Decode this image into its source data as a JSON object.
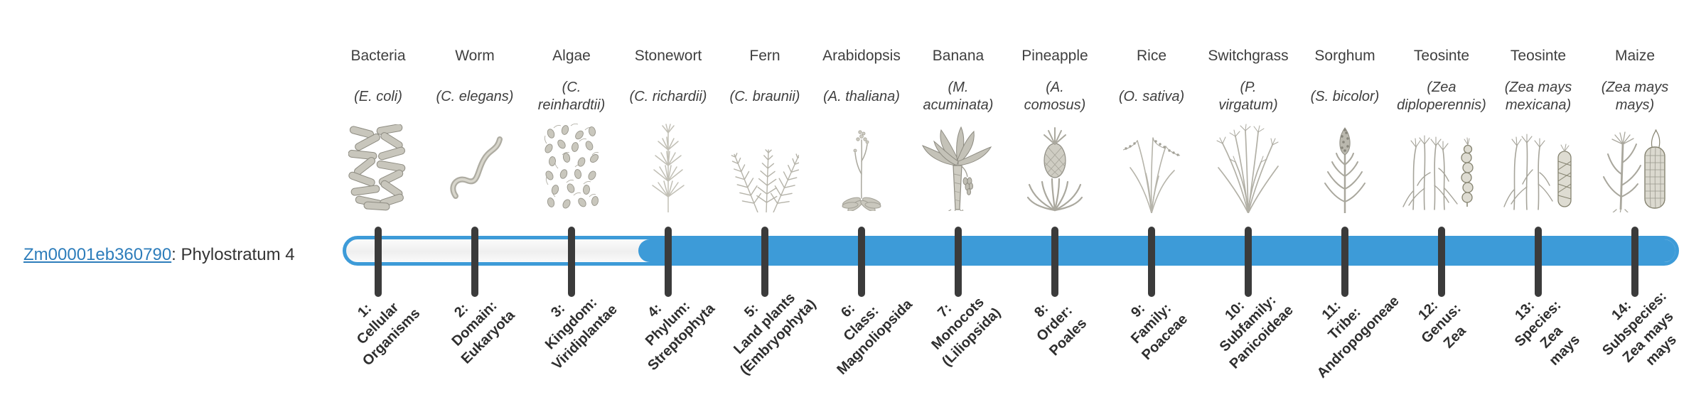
{
  "gene": {
    "id": "Zm00001eb360790",
    "suffix": ": Phylostratum 4"
  },
  "colors": {
    "bar_blue": "#3d9bd8",
    "link_blue": "#2d7dbb",
    "tick": "#3b3b3b",
    "text": "#3f3f3f",
    "label_dark": "#2e2e2e"
  },
  "columns": [
    {
      "organism": "Bacteria",
      "species": "(E. coli)",
      "icon": "bacteria",
      "stratum": "1:\nCellular\nOrganisms"
    },
    {
      "organism": "Worm",
      "species": "(C. elegans)",
      "icon": "worm",
      "stratum": "2:\nDomain:\nEukaryota"
    },
    {
      "organism": "Algae",
      "species": "(C.\nreinhardtii)",
      "icon": "algae",
      "stratum": "3:\nKingdom:\nViridiplantae"
    },
    {
      "organism": "Stonewort",
      "species": "(C. richardii)",
      "icon": "stonewort",
      "stratum": "4:\nPhylum:\nStreptophyta"
    },
    {
      "organism": "Fern",
      "species": "(C. braunii)",
      "icon": "fern",
      "stratum": "5:\nLand plants\n(Embryophyta)"
    },
    {
      "organism": "Arabidopsis",
      "species": "(A. thaliana)",
      "icon": "arabidopsis",
      "stratum": "6:\nClass:\nMagnoliopsida"
    },
    {
      "organism": "Banana",
      "species": "(M.\nacuminata)",
      "icon": "banana",
      "stratum": "7:\nMonocots\n(Liliopsida)"
    },
    {
      "organism": "Pineapple",
      "species": "(A.\ncomosus)",
      "icon": "pineapple",
      "stratum": "8:\nOrder:\nPoales"
    },
    {
      "organism": "Rice",
      "species": "(O. sativa)",
      "icon": "rice",
      "stratum": "9:\nFamily:\nPoaceae"
    },
    {
      "organism": "Switchgrass",
      "species": "(P.\nvirgatum)",
      "icon": "switchgrass",
      "stratum": "10:\nSubfamily:\nPanicoideae"
    },
    {
      "organism": "Sorghum",
      "species": "(S. bicolor)",
      "icon": "sorghum",
      "stratum": "11:\nTribe:\nAndropogoneae"
    },
    {
      "organism": "Teosinte",
      "species": "(Zea\ndiploperennis)",
      "icon": "teosinte-diploperennis",
      "stratum": "12:\nGenus:\nZea"
    },
    {
      "organism": "Teosinte",
      "species": "(Zea mays\nmexicana)",
      "icon": "teosinte-mexicana",
      "stratum": "13:\nSpecies:\nZea\nmays"
    },
    {
      "organism": "Maize",
      "species": "(Zea mays\nmays)",
      "icon": "maize",
      "stratum": "14:\nSubspecies:\nZea mays\nmays"
    }
  ],
  "chart_data": {
    "type": "bar",
    "title": "Zm00001eb360790: Phylostratum 4",
    "gene": "Zm00001eb360790",
    "phylostratum": 4,
    "num_strata": 14,
    "hollow_range": [
      1,
      3
    ],
    "filled_range": [
      4,
      14
    ],
    "categories": [
      "1: Cellular Organisms",
      "2: Domain: Eukaryota",
      "3: Kingdom: Viridiplantae",
      "4: Phylum: Streptophyta",
      "5: Land plants (Embryophyta)",
      "6: Class: Magnoliopsida",
      "7: Monocots (Liliopsida)",
      "8: Order: Poales",
      "9: Family: Poaceae",
      "10: Subfamily: Panicoideae",
      "11: Tribe: Andropogoneae",
      "12: Genus: Zea",
      "13: Species: Zea mays",
      "14: Subspecies: Zea mays mays"
    ],
    "organisms": [
      "Bacteria (E. coli)",
      "Worm (C. elegans)",
      "Algae (C. reinhardtii)",
      "Stonewort (C. richardii)",
      "Fern (C. braunii)",
      "Arabidopsis (A. thaliana)",
      "Banana (M. acuminata)",
      "Pineapple (A. comosus)",
      "Rice (O. sativa)",
      "Switchgrass (P. virgatum)",
      "Sorghum (S. bicolor)",
      "Teosinte (Zea diploperennis)",
      "Teosinte (Zea mays mexicana)",
      "Maize (Zea mays mays)"
    ],
    "legend_position": "none",
    "grid": false
  }
}
